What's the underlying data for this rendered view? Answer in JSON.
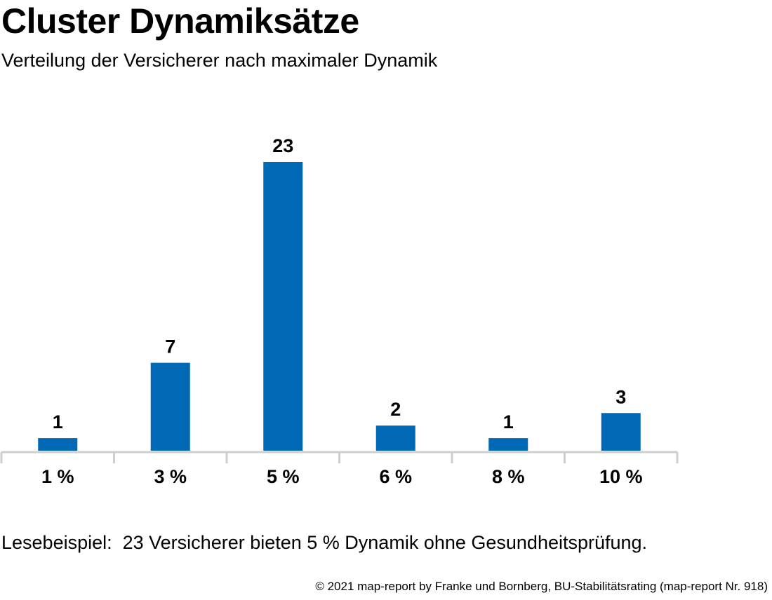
{
  "header": {
    "title": "Cluster Dynamiksätze",
    "subtitle": "Verteilung der Versicherer nach maximaler Dynamik"
  },
  "footer": {
    "note": "Lesebeispiel:  23 Versicherer bieten 5 % Dynamik ohne Gesundheitsprüfung.",
    "source": "© 2021 map-report by Franke und Bornberg, BU-Stabilitätsrating (map-report Nr. 918)"
  },
  "colors": {
    "bar": "#0068b4",
    "axis": "#cfcfcf"
  },
  "chart_data": {
    "type": "bar",
    "title": "Cluster Dynamiksätze",
    "subtitle": "Verteilung der Versicherer nach maximaler Dynamik",
    "categories": [
      "1 %",
      "3 %",
      "5 %",
      "6 %",
      "8 %",
      "10 %"
    ],
    "values": [
      1,
      7,
      23,
      2,
      1,
      3
    ],
    "xlabel": "",
    "ylabel": "",
    "ylim": [
      0,
      23
    ],
    "grid": false,
    "legend": "none",
    "data_labels": true
  }
}
